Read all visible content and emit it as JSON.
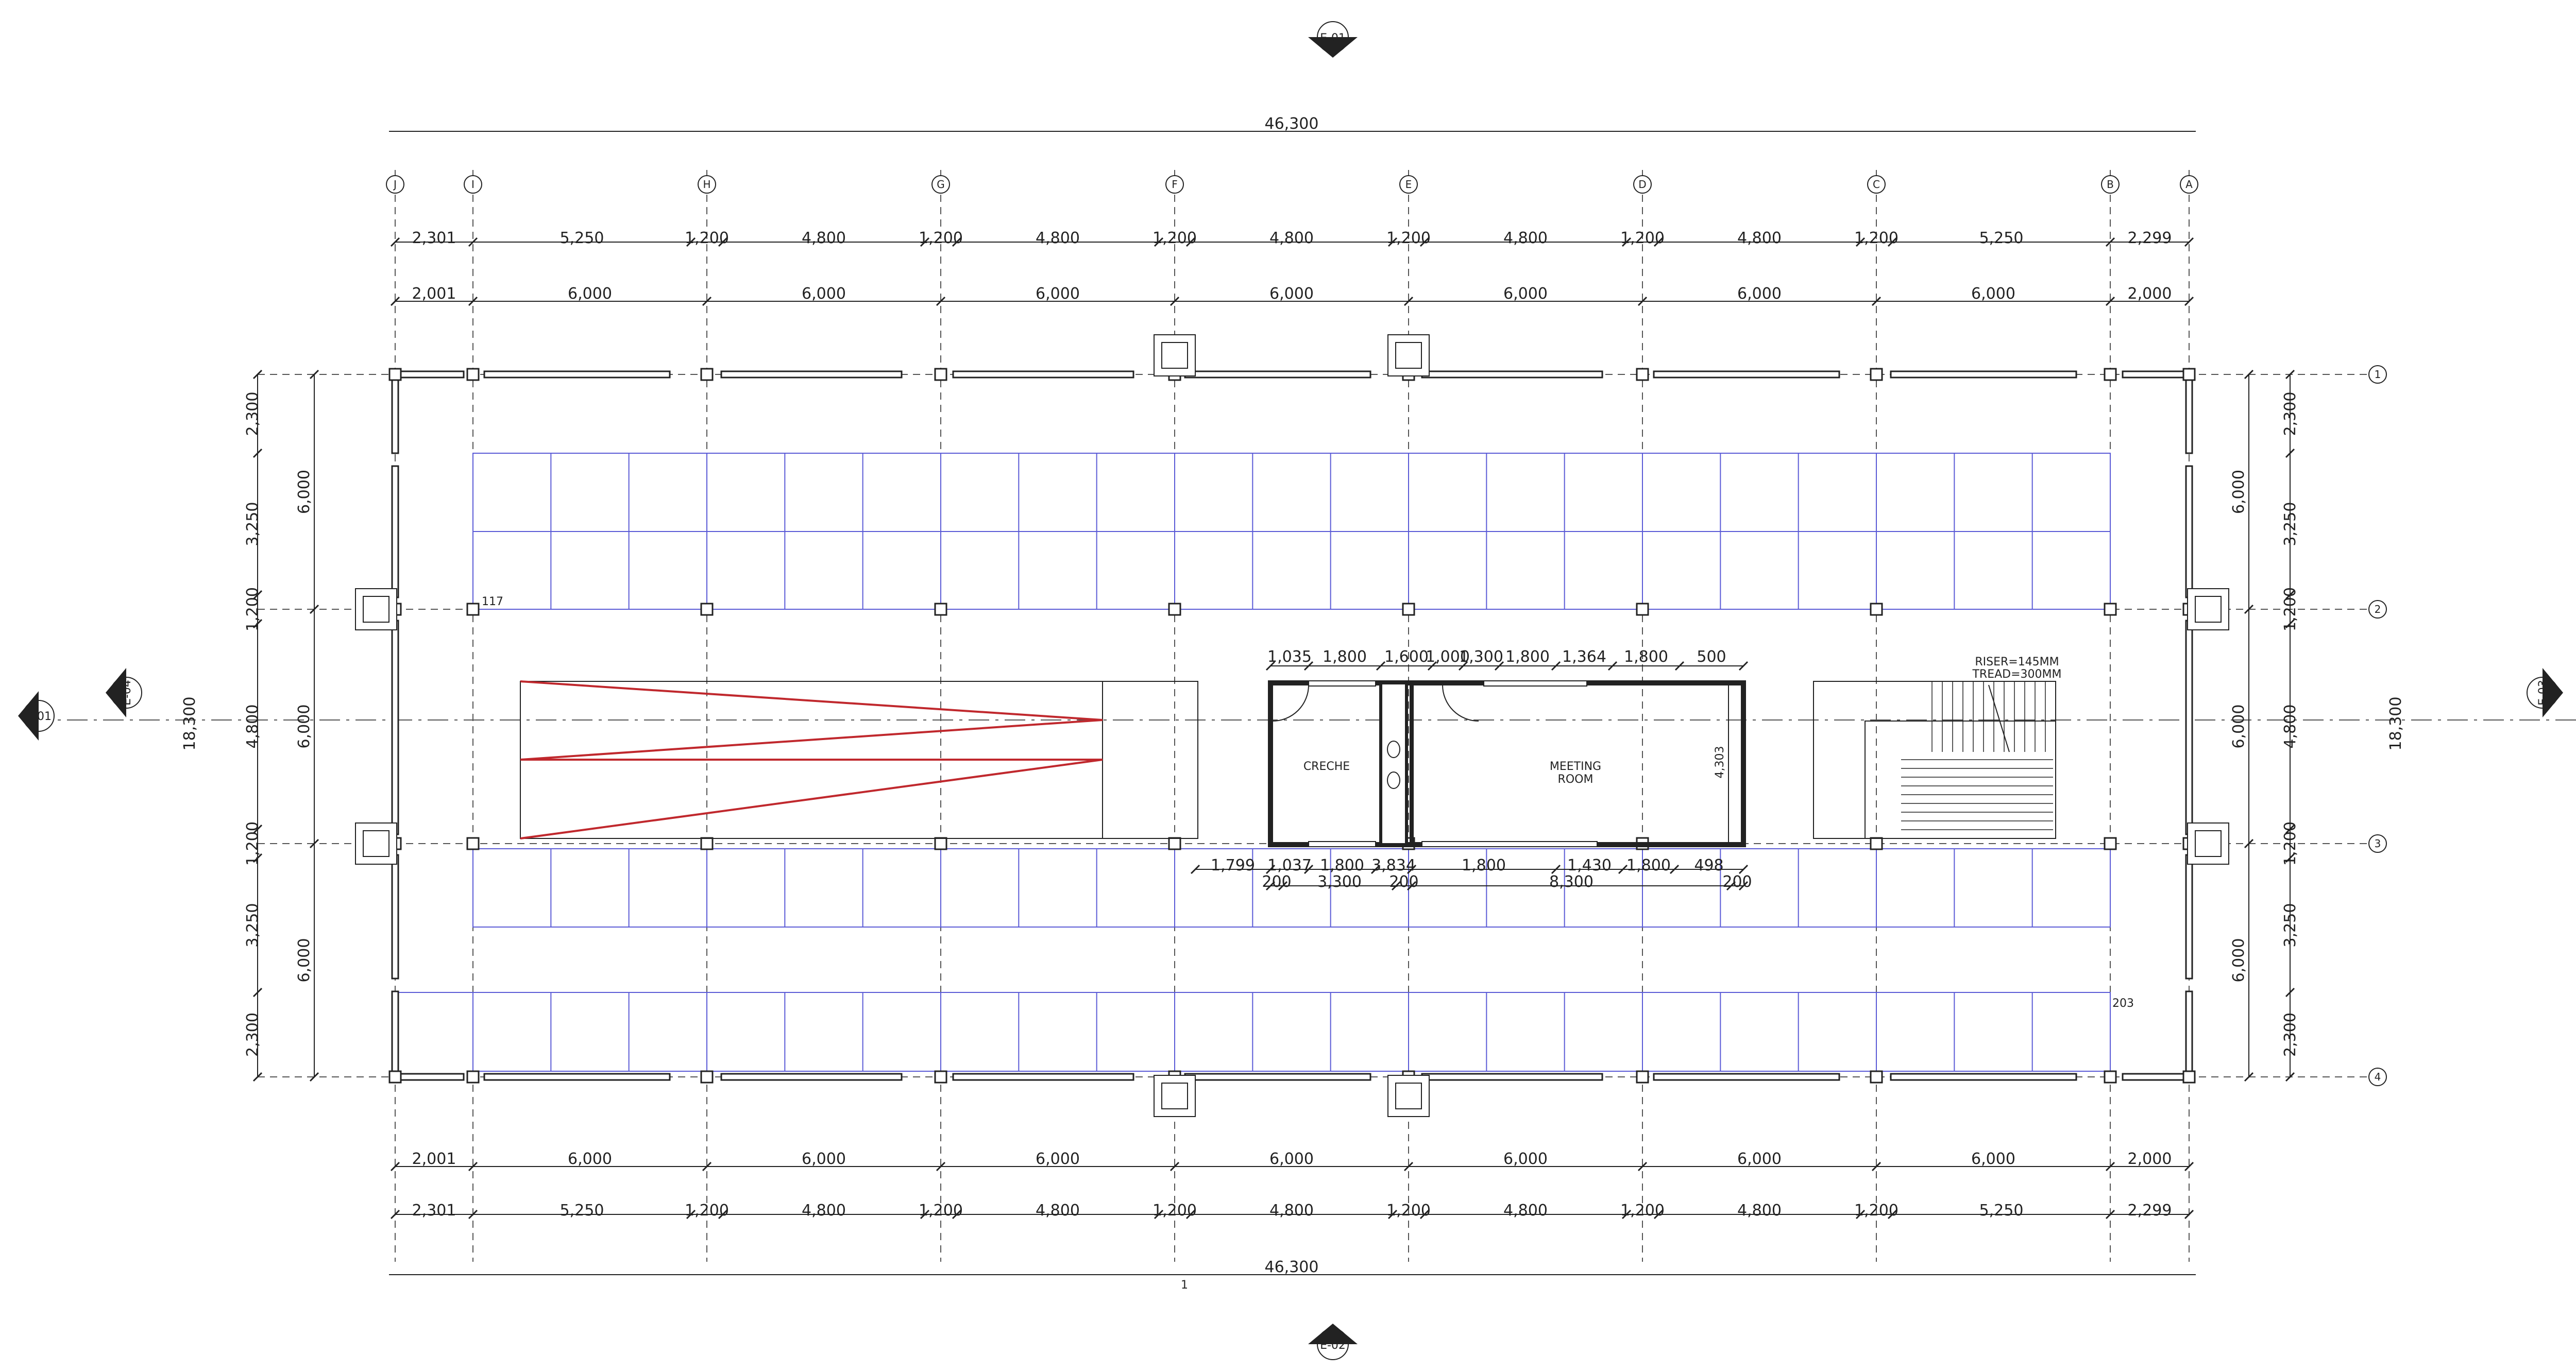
{
  "overall": {
    "width": "46,300",
    "depth": "18,300"
  },
  "grid_cols": [
    "J",
    "I",
    "H",
    "G",
    "F",
    "E",
    "D",
    "C",
    "B",
    "A"
  ],
  "grid_rows": [
    "1",
    "2",
    "3",
    "4"
  ],
  "dims": {
    "top_row1": [
      "2,301",
      "5,250",
      "1,200",
      "4,800",
      "1,200",
      "4,800",
      "1,200",
      "4,800",
      "1,200",
      "4,800",
      "1,200",
      "4,800",
      "1,200",
      "5,250",
      "2,299"
    ],
    "top_row2": [
      "2,001",
      "6,000",
      "6,000",
      "6,000",
      "6,000",
      "6,000",
      "6,000",
      "6,000",
      "2,000"
    ],
    "bottom_row1": [
      "2,001",
      "6,000",
      "6,000",
      "6,000",
      "6,000",
      "6,000",
      "6,000",
      "6,000",
      "2,000"
    ],
    "bottom_row2": [
      "2,301",
      "5,250",
      "1,200",
      "4,800",
      "1,200",
      "4,800",
      "1,200",
      "4,800",
      "1,200",
      "4,800",
      "1,200",
      "4,800",
      "1,200",
      "5,250",
      "2,299"
    ],
    "side_outer": [
      "2,300",
      "3,250",
      "1,200",
      "4,800",
      "1,200",
      "3,250",
      "2,300"
    ],
    "side_inner": [
      "6,000",
      "6,000",
      "6,000"
    ],
    "core_top": [
      "1,035",
      "1,800",
      "1,600",
      "1,000",
      "1,300",
      "1,800",
      "1,364",
      "1,800",
      "500"
    ],
    "core_bottom1": [
      "1,799",
      "1,037",
      "1,800",
      "3,834",
      "1,800",
      "1,430",
      "1,800",
      "498"
    ],
    "core_bottom2": [
      "200",
      "3,300",
      "200",
      "8,300",
      "200"
    ],
    "core_height": "4,303"
  },
  "rooms": {
    "creche": "CRECHE",
    "meeting_line1": "MEETING",
    "meeting_line2": "ROOM"
  },
  "stair_note": {
    "line1": "RISER=145MM",
    "line2": "TREAD=300MM"
  },
  "tags": {
    "top": "E-01",
    "bottom": "E-02",
    "left_section": "S-01",
    "right_section": "S-01",
    "left_elev": "E-04",
    "right_elev": "E-03"
  },
  "labels": {
    "n117": "117",
    "n203": "203",
    "tick": "1"
  },
  "colors": {
    "line": "#222222",
    "grid": "#555555",
    "parking": "#5b5bd6",
    "ramp": "#c0282d"
  }
}
